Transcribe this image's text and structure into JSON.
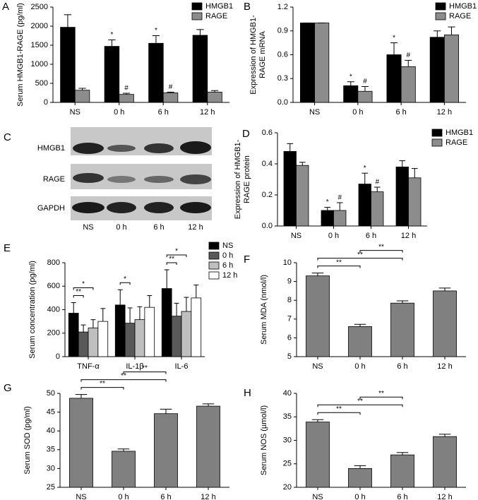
{
  "chart_data": [
    {
      "type": "bar",
      "panel": "A",
      "ylabel": "Serum HMGB1-RAGE (pg/ml)",
      "categories": [
        "NS",
        "0 h",
        "6 h",
        "12 h"
      ],
      "ylim": [
        0,
        2500
      ],
      "yticks": [
        0,
        500,
        1000,
        1500,
        2000,
        2500
      ],
      "series": [
        {
          "name": "HMGB1",
          "color": "#000000",
          "values": [
            1970,
            1470,
            1550,
            1760
          ],
          "errors": [
            330,
            170,
            200,
            150
          ],
          "marks": [
            null,
            "*",
            "*",
            null
          ]
        },
        {
          "name": "RAGE",
          "color": "#8c8c8c",
          "values": [
            320,
            210,
            250,
            270
          ],
          "errors": [
            50,
            30,
            20,
            40
          ],
          "marks": [
            null,
            "#",
            "#",
            null
          ]
        }
      ]
    },
    {
      "type": "bar",
      "panel": "B",
      "ylabel": [
        "Expression of HMGB1-",
        "RAGE mRNA"
      ],
      "categories": [
        "NS",
        "0 h",
        "6 h",
        "12 h"
      ],
      "ylim": [
        0,
        1.2
      ],
      "yticks": [
        {
          "value": 0,
          "label": "0.0"
        },
        0.3,
        0.6,
        0.9,
        1.2
      ],
      "series": [
        {
          "name": "HMGB1",
          "color": "#000000",
          "values": [
            1.0,
            0.21,
            0.6,
            0.82
          ],
          "errors": [
            0,
            0.05,
            0.15,
            0.08
          ],
          "marks": [
            null,
            "*",
            "*",
            null
          ]
        },
        {
          "name": "RAGE",
          "color": "#8c8c8c",
          "values": [
            1.0,
            0.14,
            0.45,
            0.85
          ],
          "errors": [
            0,
            0.06,
            0.08,
            0.1
          ],
          "marks": [
            null,
            "#",
            "#",
            null
          ]
        }
      ]
    },
    {
      "type": "bar",
      "panel": "D",
      "ylabel": [
        "Expression of HMGB1-",
        "RAGE protein"
      ],
      "categories": [
        "NS",
        "0 h",
        "6 h",
        "12 h"
      ],
      "ylim": [
        0,
        0.6
      ],
      "yticks": [
        {
          "value": 0,
          "label": "0.0"
        },
        0.2,
        0.4,
        0.6
      ],
      "series": [
        {
          "name": "HMGB1",
          "color": "#000000",
          "values": [
            0.48,
            0.1,
            0.27,
            0.38
          ],
          "errors": [
            0.05,
            0.02,
            0.07,
            0.04
          ],
          "marks": [
            null,
            "*",
            "*",
            null
          ]
        },
        {
          "name": "RAGE",
          "color": "#8c8c8c",
          "values": [
            0.39,
            0.1,
            0.22,
            0.31
          ],
          "errors": [
            0.02,
            0.05,
            0.03,
            0.06
          ],
          "marks": [
            null,
            "#",
            "#",
            null
          ]
        }
      ]
    },
    {
      "type": "bar",
      "panel": "E",
      "ylabel": "Serum concentration (pg/ml)",
      "categories": [
        "TNF-α",
        "IL-1β",
        "IL-6"
      ],
      "ylim": [
        0,
        800
      ],
      "yticks": [
        0,
        200,
        400,
        600,
        800
      ],
      "series": [
        {
          "name": "NS",
          "color": "#000000",
          "values": [
            370,
            440,
            580
          ],
          "errors": [
            90,
            130,
            160
          ]
        },
        {
          "name": "0 h",
          "color": "#595959",
          "values": [
            210,
            285,
            345
          ],
          "errors": [
            60,
            130,
            110
          ]
        },
        {
          "name": "6 h",
          "color": "#bfbfbf",
          "values": [
            245,
            315,
            385
          ],
          "errors": [
            70,
            110,
            120
          ]
        },
        {
          "name": "12 h",
          "color": "#ffffff",
          "values": [
            300,
            420,
            500
          ],
          "errors": [
            110,
            100,
            110
          ]
        }
      ],
      "brackets": [
        {
          "category": 0,
          "from": 0,
          "to": 1,
          "label": "**"
        },
        {
          "category": 0,
          "from": 0,
          "to": 2,
          "label": "*"
        },
        {
          "category": 1,
          "from": 0,
          "to": 1,
          "label": "*"
        },
        {
          "category": 2,
          "from": 0,
          "to": 1,
          "label": "**"
        },
        {
          "category": 2,
          "from": 0,
          "to": 2,
          "label": "*"
        }
      ]
    },
    {
      "type": "bar",
      "panel": "F",
      "ylabel": "Serum MDA (nmol/l)",
      "categories": [
        "NS",
        "0 h",
        "6 h",
        "12 h"
      ],
      "ylim": [
        5,
        10
      ],
      "yticks": [
        5,
        6,
        7,
        8,
        9,
        10
      ],
      "color": "#808080",
      "values": [
        9.3,
        6.6,
        7.85,
        8.5
      ],
      "errors": [
        0.15,
        0.12,
        0.12,
        0.15
      ],
      "brackets": [
        {
          "from": 0,
          "to": 1,
          "label": "**"
        },
        {
          "from": 0,
          "to": 2,
          "label": "**"
        },
        {
          "from": 1,
          "to": 2,
          "label": "**"
        }
      ]
    },
    {
      "type": "bar",
      "panel": "G",
      "ylabel": "Serum SOD (pg/ml)",
      "categories": [
        "NS",
        "0 h",
        "6 h",
        "12 h"
      ],
      "ylim": [
        25,
        50
      ],
      "yticks": [
        25,
        30,
        35,
        40,
        45,
        50
      ],
      "color": "#808080",
      "values": [
        48.7,
        34.6,
        44.6,
        46.6
      ],
      "errors": [
        1.0,
        0.6,
        1.2,
        0.6
      ],
      "brackets": [
        {
          "from": 0,
          "to": 1,
          "label": "**"
        },
        {
          "from": 0,
          "to": 2,
          "label": "**"
        },
        {
          "from": 1,
          "to": 2,
          "label": "**"
        }
      ]
    },
    {
      "type": "bar",
      "panel": "H",
      "ylabel": "Serum NOS (µmol/l)",
      "categories": [
        "NS",
        "0 h",
        "6 h",
        "12 h"
      ],
      "ylim": [
        20,
        40
      ],
      "yticks": [
        20,
        25,
        30,
        35,
        40
      ],
      "color": "#808080",
      "values": [
        33.9,
        24.0,
        26.9,
        30.8
      ],
      "errors": [
        0.5,
        0.6,
        0.5,
        0.5
      ],
      "brackets": [
        {
          "from": 0,
          "to": 1,
          "label": "**"
        },
        {
          "from": 0,
          "to": 2,
          "label": "**"
        },
        {
          "from": 1,
          "to": 2,
          "label": "**"
        }
      ]
    }
  ],
  "blot": {
    "panel": "C",
    "rows": [
      "HMGB1",
      "RAGE",
      "GAPDH"
    ],
    "lanes": [
      "NS",
      "0 h",
      "6 h",
      "12 h"
    ]
  }
}
